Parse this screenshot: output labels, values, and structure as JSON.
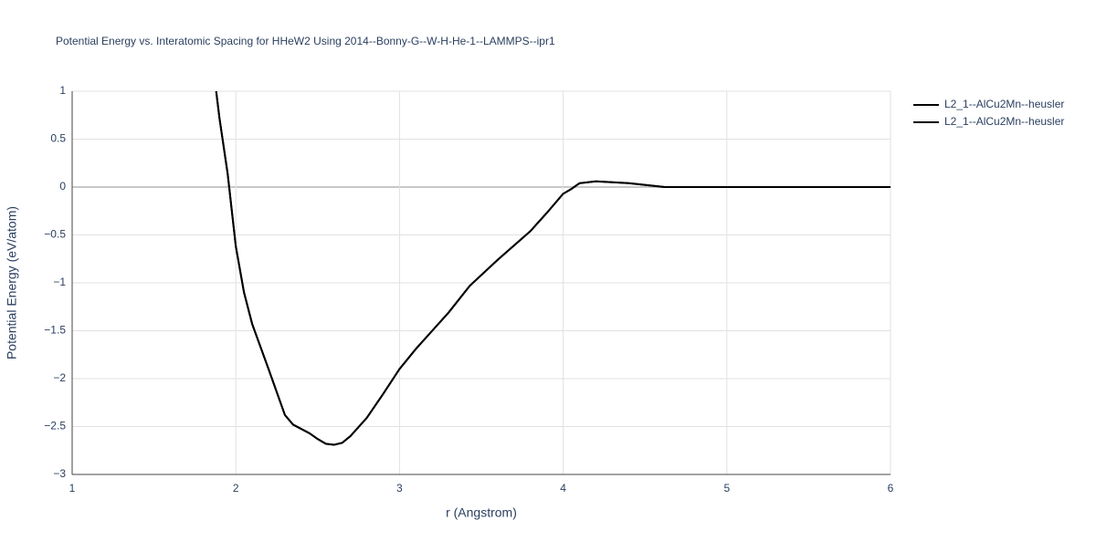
{
  "chart_data": {
    "type": "line",
    "title": "Potential Energy vs. Interatomic Spacing for HHeW2 Using 2014--Bonny-G--W-H-He-1--LAMMPS--ipr1",
    "x_label": "r (Angstrom)",
    "y_label": "Potential Energy (eV/atom)",
    "x": [
      1.88,
      1.9,
      1.95,
      2.0,
      2.05,
      2.1,
      2.2,
      2.25,
      2.3,
      2.35,
      2.45,
      2.5,
      2.55,
      2.6,
      2.65,
      2.7,
      2.8,
      2.9,
      3.0,
      3.1,
      3.2,
      3.3,
      3.43,
      3.6,
      3.8,
      3.9,
      4.0,
      4.05,
      4.1,
      4.2,
      4.4,
      4.62,
      5.0,
      6.0
    ],
    "series": [
      {
        "name": "L2_1--AlCu2Mn--heusler",
        "color": "#000000",
        "values": [
          1.0,
          0.72,
          0.14,
          -0.62,
          -1.1,
          -1.43,
          -1.9,
          -2.14,
          -2.38,
          -2.48,
          -2.57,
          -2.63,
          -2.68,
          -2.69,
          -2.67,
          -2.6,
          -2.41,
          -2.16,
          -1.9,
          -1.69,
          -1.5,
          -1.31,
          -1.03,
          -0.76,
          -0.46,
          -0.27,
          -0.07,
          -0.02,
          0.04,
          0.06,
          0.04,
          0.0,
          0.0,
          0.0
        ]
      },
      {
        "name": "L2_1--AlCu2Mn--heusler",
        "color": "#000000",
        "values": [
          1.0,
          0.72,
          0.14,
          -0.62,
          -1.1,
          -1.43,
          -1.9,
          -2.14,
          -2.38,
          -2.48,
          -2.57,
          -2.63,
          -2.68,
          -2.69,
          -2.67,
          -2.6,
          -2.41,
          -2.16,
          -1.9,
          -1.69,
          -1.5,
          -1.31,
          -1.03,
          -0.76,
          -0.46,
          -0.27,
          -0.07,
          -0.02,
          0.04,
          0.06,
          0.04,
          0.0,
          0.0,
          0.0
        ]
      }
    ],
    "xlim": [
      1,
      6
    ],
    "xticks": [
      1,
      2,
      3,
      4,
      5,
      6
    ],
    "ylim": [
      -3,
      1
    ],
    "yticks": [
      {
        "value": -3,
        "label": "−3"
      },
      {
        "value": -2.5,
        "label": "−2.5"
      },
      {
        "value": -2,
        "label": "−2"
      },
      {
        "value": -1.5,
        "label": "−1.5"
      },
      {
        "value": -1,
        "label": "−1"
      },
      {
        "value": -0.5,
        "label": "−0.5"
      },
      0,
      0.5,
      1
    ],
    "grid": true,
    "legend": "right"
  }
}
